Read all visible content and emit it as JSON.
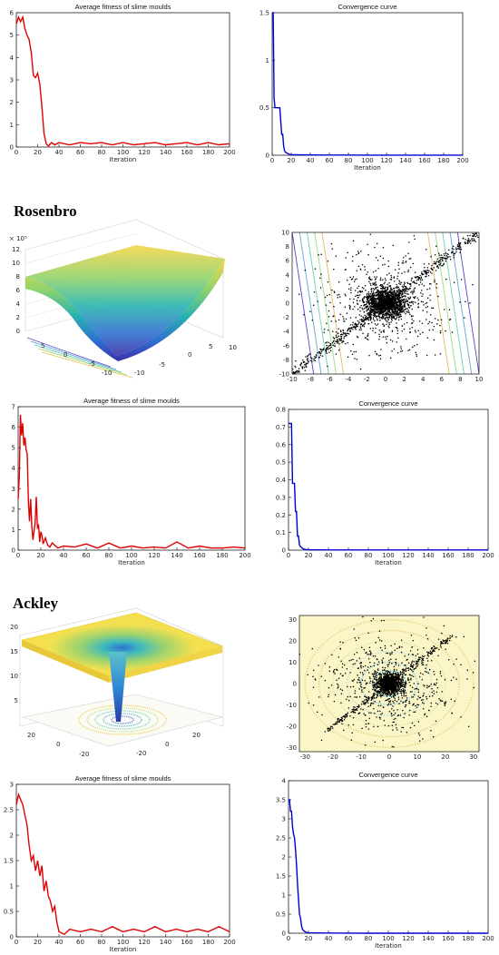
{
  "sections": [
    {
      "name": ""
    },
    {
      "name": "Rosenbro"
    },
    {
      "name": "Ackley"
    }
  ],
  "surface_exponent": "× 10⁵",
  "chart_data": [
    {
      "id": "p1-fitness",
      "type": "line",
      "title": "Average fitness of slime moulds",
      "xlabel": "Iteration",
      "ylabel": "",
      "color": "#e00000",
      "xlim": [
        0,
        200
      ],
      "ylim": [
        0,
        6
      ],
      "xticks": [
        0,
        20,
        40,
        60,
        80,
        100,
        120,
        140,
        160,
        180,
        200
      ],
      "yticks": [
        0,
        1,
        2,
        3,
        4,
        5,
        6
      ],
      "x": [
        0,
        2,
        4,
        6,
        8,
        10,
        12,
        14,
        16,
        18,
        20,
        22,
        24,
        26,
        28,
        30,
        33,
        36,
        40,
        50,
        60,
        70,
        80,
        90,
        100,
        110,
        120,
        130,
        140,
        150,
        160,
        170,
        180,
        190,
        200
      ],
      "y": [
        5.5,
        5.8,
        5.6,
        5.8,
        5.3,
        5.0,
        4.8,
        4.2,
        3.2,
        3.1,
        3.3,
        2.8,
        1.8,
        0.6,
        0.15,
        0.05,
        0.2,
        0.1,
        0.2,
        0.1,
        0.2,
        0.15,
        0.2,
        0.1,
        0.2,
        0.1,
        0.15,
        0.2,
        0.1,
        0.15,
        0.2,
        0.1,
        0.2,
        0.1,
        0.15
      ]
    },
    {
      "id": "p1-conv",
      "type": "line",
      "title": "Convergence curve",
      "xlabel": "Iteration",
      "ylabel": "",
      "color": "#0000d0",
      "xlim": [
        0,
        200
      ],
      "ylim": [
        0,
        1.5
      ],
      "xticks": [
        0,
        20,
        40,
        60,
        80,
        100,
        120,
        140,
        160,
        180,
        200
      ],
      "yticks": [
        0,
        0.5,
        1,
        1.5
      ],
      "x": [
        0,
        1,
        2,
        3,
        4,
        5,
        6,
        8,
        10,
        11,
        12,
        13,
        14,
        16,
        18,
        20,
        40,
        60,
        80,
        100,
        120,
        140,
        160,
        180,
        200
      ],
      "y": [
        1.5,
        1.5,
        0.6,
        0.5,
        0.5,
        0.5,
        0.5,
        0.5,
        0.22,
        0.22,
        0.1,
        0.05,
        0.03,
        0.02,
        0.01,
        0.005,
        0.003,
        0.002,
        0.002,
        0.001,
        0.001,
        0.001,
        0.001,
        0.001,
        0.001
      ]
    },
    {
      "id": "rosen-surface",
      "type": "surface",
      "title": "",
      "zticks": [
        0,
        2,
        4,
        6,
        8,
        10,
        12
      ],
      "xticks": [
        -10,
        -5,
        0,
        5,
        10
      ],
      "yticks": [
        5,
        0,
        -5,
        -10
      ]
    },
    {
      "id": "rosen-scatter",
      "type": "scatter",
      "title": "",
      "xlim": [
        -10,
        10
      ],
      "ylim": [
        -10,
        10
      ],
      "xticks": [
        -10,
        -8,
        -6,
        -4,
        -2,
        0,
        2,
        4,
        6,
        8,
        10
      ],
      "yticks": [
        -10,
        -8,
        -6,
        -4,
        -2,
        0,
        2,
        4,
        6,
        8,
        10
      ]
    },
    {
      "id": "p2-fitness",
      "type": "line",
      "title": "Average fitness of slime moulds",
      "xlabel": "Iteration",
      "ylabel": "",
      "color": "#e00000",
      "xlim": [
        0,
        200
      ],
      "ylim": [
        0,
        7
      ],
      "xticks": [
        0,
        20,
        40,
        60,
        80,
        100,
        120,
        140,
        160,
        180,
        200
      ],
      "yticks": [
        0,
        1,
        2,
        3,
        4,
        5,
        6,
        7
      ],
      "x": [
        0,
        1,
        2,
        3,
        4,
        5,
        6,
        7,
        8,
        9,
        10,
        11,
        12,
        13,
        14,
        15,
        16,
        17,
        18,
        19,
        20,
        21,
        22,
        24,
        26,
        28,
        30,
        35,
        40,
        50,
        60,
        70,
        80,
        90,
        100,
        110,
        120,
        130,
        140,
        150,
        160,
        170,
        180,
        190,
        200
      ],
      "y": [
        2.5,
        3.6,
        6.6,
        5.6,
        6.2,
        5.1,
        5.5,
        4.9,
        4.7,
        2.4,
        1.4,
        2.5,
        1.2,
        0.5,
        0.9,
        1.4,
        2.6,
        1.1,
        1.2,
        0.4,
        0.9,
        0.7,
        0.3,
        0.6,
        0.25,
        0.15,
        0.35,
        0.1,
        0.2,
        0.15,
        0.3,
        0.1,
        0.35,
        0.1,
        0.2,
        0.1,
        0.15,
        0.1,
        0.4,
        0.1,
        0.2,
        0.1,
        0.1,
        0.15,
        0.1
      ]
    },
    {
      "id": "p2-conv",
      "type": "line",
      "title": "Convergence curve",
      "xlabel": "Iteration",
      "ylabel": "",
      "color": "#0000d0",
      "xlim": [
        0,
        200
      ],
      "ylim": [
        0,
        0.8
      ],
      "xticks": [
        0,
        20,
        40,
        60,
        80,
        100,
        120,
        140,
        160,
        180,
        200
      ],
      "yticks": [
        0,
        0.1,
        0.2,
        0.3,
        0.4,
        0.5,
        0.6,
        0.7,
        0.8
      ],
      "x": [
        0,
        2,
        3,
        4,
        5,
        6,
        7,
        8,
        9,
        10,
        11,
        12,
        14,
        16,
        18,
        20,
        40,
        60,
        80,
        100,
        120,
        140,
        160,
        180,
        200
      ],
      "y": [
        0.72,
        0.72,
        0.72,
        0.38,
        0.38,
        0.38,
        0.22,
        0.22,
        0.08,
        0.08,
        0.03,
        0.02,
        0.01,
        0.005,
        0.003,
        0.002,
        0.001,
        0.001,
        0.001,
        0.001,
        0.001,
        0.001,
        0.001,
        0.001,
        0.001
      ]
    },
    {
      "id": "ackley-surface",
      "type": "surface",
      "title": "",
      "zticks": [
        5,
        10,
        15,
        20
      ],
      "xticks": [
        -20,
        0,
        20
      ],
      "yticks": [
        20,
        0,
        -20
      ]
    },
    {
      "id": "ackley-scatter",
      "type": "scatter",
      "title": "",
      "xlim": [
        -32,
        32
      ],
      "ylim": [
        -32,
        32
      ],
      "xticks": [
        -30,
        -20,
        -10,
        0,
        10,
        20,
        30
      ],
      "yticks": [
        -30,
        -20,
        -10,
        0,
        10,
        20,
        30
      ]
    },
    {
      "id": "p3-fitness",
      "type": "line",
      "title": "Average fitness of slime moulds",
      "xlabel": "Iteration",
      "ylabel": "",
      "color": "#e00000",
      "xlim": [
        0,
        200
      ],
      "ylim": [
        0,
        3
      ],
      "xticks": [
        0,
        20,
        40,
        60,
        80,
        100,
        120,
        140,
        160,
        180,
        200
      ],
      "yticks": [
        0,
        0.5,
        1,
        1.5,
        2,
        2.5,
        3
      ],
      "x": [
        0,
        2,
        4,
        6,
        8,
        10,
        12,
        14,
        16,
        18,
        20,
        22,
        24,
        26,
        28,
        30,
        32,
        34,
        36,
        38,
        40,
        45,
        50,
        60,
        70,
        80,
        90,
        100,
        110,
        120,
        130,
        140,
        150,
        160,
        170,
        180,
        190,
        200
      ],
      "y": [
        2.6,
        2.8,
        2.7,
        2.6,
        2.4,
        2.2,
        1.8,
        1.5,
        1.6,
        1.3,
        1.5,
        1.2,
        1.4,
        0.9,
        1.1,
        0.8,
        0.7,
        0.5,
        0.6,
        0.3,
        0.1,
        0.05,
        0.15,
        0.1,
        0.15,
        0.1,
        0.2,
        0.1,
        0.15,
        0.1,
        0.2,
        0.1,
        0.15,
        0.1,
        0.15,
        0.1,
        0.2,
        0.1
      ]
    },
    {
      "id": "p3-conv",
      "type": "line",
      "title": "Convergence curve",
      "xlabel": "Iteration",
      "ylabel": "",
      "color": "#0000d0",
      "xlim": [
        0,
        200
      ],
      "ylim": [
        0,
        4
      ],
      "xticks": [
        0,
        20,
        40,
        60,
        80,
        100,
        120,
        140,
        160,
        180,
        200
      ],
      "yticks": [
        0,
        0.5,
        1,
        1.5,
        2,
        2.5,
        3,
        3.5,
        4
      ],
      "x": [
        0,
        1,
        2,
        3,
        4,
        5,
        6,
        7,
        8,
        9,
        10,
        11,
        12,
        13,
        14,
        16,
        18,
        20,
        40,
        60,
        80,
        100,
        120,
        140,
        160,
        180,
        200
      ],
      "y": [
        3.5,
        3.5,
        3.2,
        3.2,
        2.8,
        2.6,
        2.5,
        2.2,
        1.8,
        1.3,
        0.9,
        0.5,
        0.4,
        0.2,
        0.1,
        0.05,
        0.02,
        0.01,
        0.005,
        0.002,
        0.001,
        0.001,
        0.001,
        0.001,
        0.001,
        0.001,
        0.001
      ]
    }
  ]
}
